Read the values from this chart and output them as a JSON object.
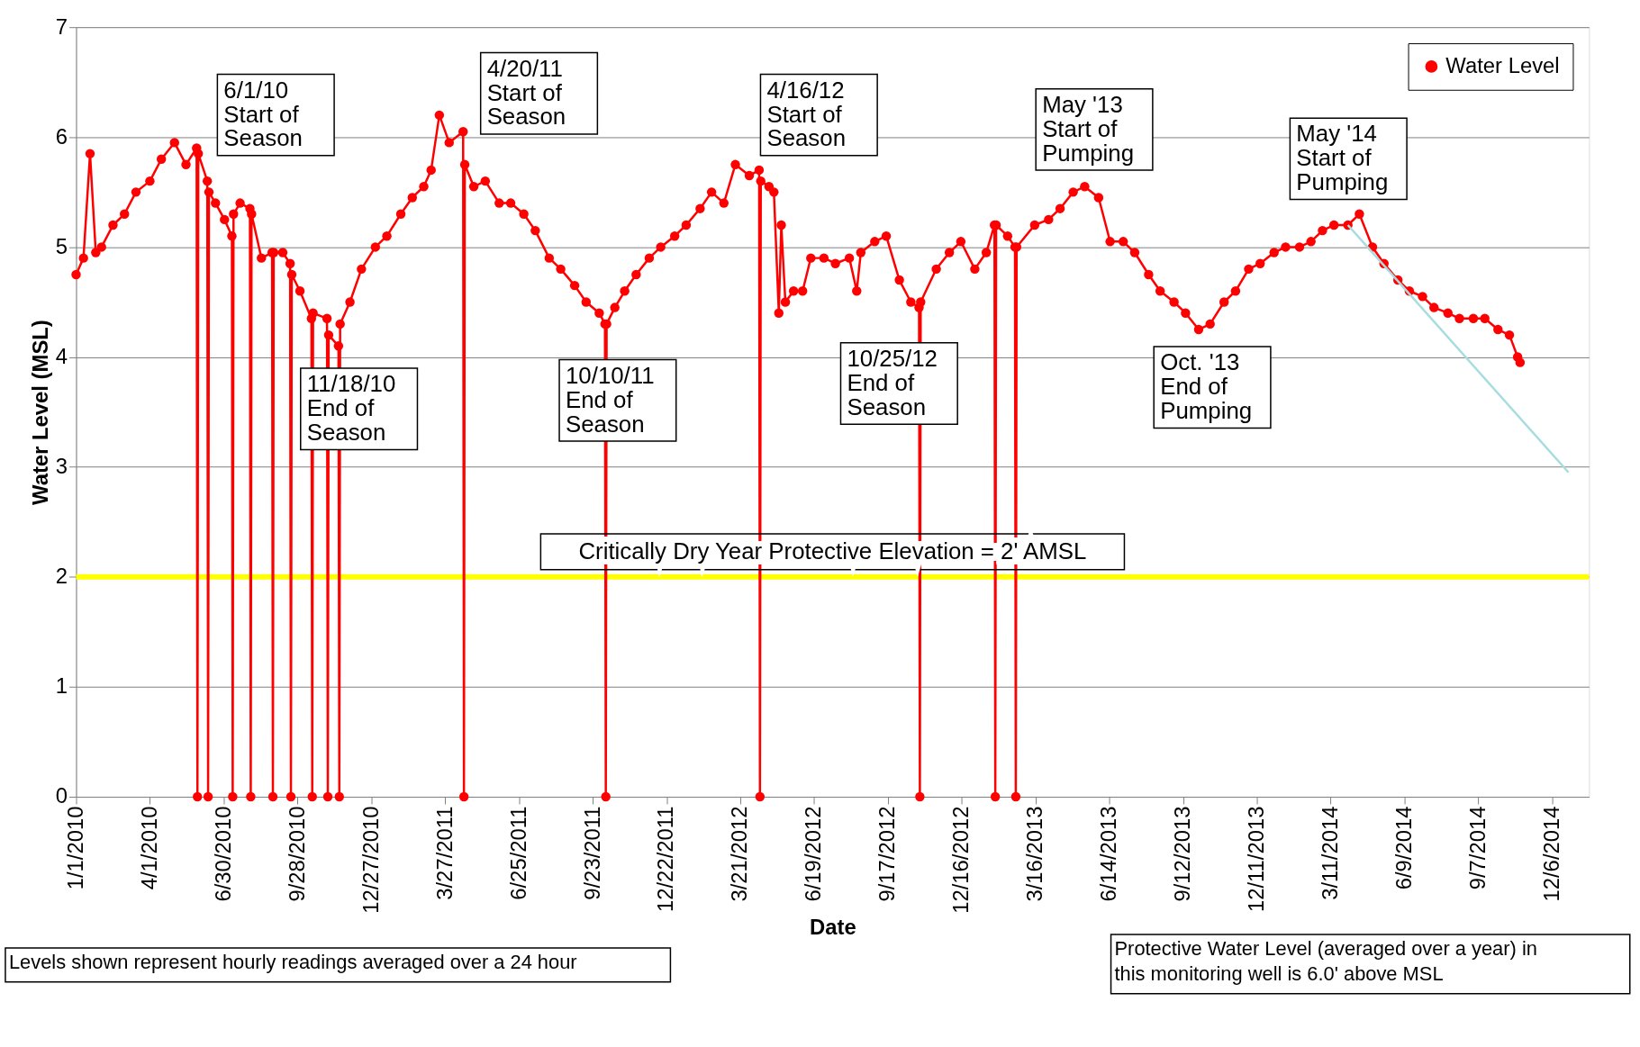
{
  "chart_data": {
    "type": "line",
    "xlabel": "Date",
    "ylabel": "Water Level (MSL)",
    "xlim": [
      "2010-01-01",
      "2015-01-20"
    ],
    "ylim": [
      0,
      7
    ],
    "yticks": [
      0,
      1,
      2,
      3,
      4,
      5,
      6,
      7
    ],
    "xticks": [
      {
        "value": "2010-01-01",
        "label": "1/1/2010"
      },
      {
        "value": "2010-04-01",
        "label": "4/1/2010"
      },
      {
        "value": "2010-06-30",
        "label": "6/30/2010"
      },
      {
        "value": "2010-09-28",
        "label": "9/28/2010"
      },
      {
        "value": "2010-12-27",
        "label": "12/27/2010"
      },
      {
        "value": "2011-03-27",
        "label": "3/27/2011"
      },
      {
        "value": "2011-06-25",
        "label": "6/25/2011"
      },
      {
        "value": "2011-09-23",
        "label": "9/23/2011"
      },
      {
        "value": "2011-12-22",
        "label": "12/22/2011"
      },
      {
        "value": "2012-03-21",
        "label": "3/21/2012"
      },
      {
        "value": "2012-06-19",
        "label": "6/19/2012"
      },
      {
        "value": "2012-09-17",
        "label": "9/17/2012"
      },
      {
        "value": "2012-12-16",
        "label": "12/16/2012"
      },
      {
        "value": "2013-03-16",
        "label": "3/16/2013"
      },
      {
        "value": "2013-06-14",
        "label": "6/14/2013"
      },
      {
        "value": "2013-09-12",
        "label": "9/12/2013"
      },
      {
        "value": "2013-12-11",
        "label": "12/11/2013"
      },
      {
        "value": "2014-03-11",
        "label": "3/11/2014"
      },
      {
        "value": "2014-06-09",
        "label": "6/9/2014"
      },
      {
        "value": "2014-09-07",
        "label": "9/7/2014"
      },
      {
        "value": "2014-12-06",
        "label": "12/6/2014"
      }
    ],
    "grid": "y",
    "legend": "top right",
    "marker": "circle",
    "line_style": "solid",
    "series": [
      {
        "name": "Water Level",
        "color": "#ff0000",
        "x": [
          "2010-01-01",
          "2010-01-10",
          "2010-01-18",
          "2010-01-25",
          "2010-02-01",
          "2010-02-15",
          "2010-03-01",
          "2010-03-15",
          "2010-04-01",
          "2010-04-15",
          "2010-05-01",
          "2010-05-15",
          "2010-05-28",
          "2010-05-29",
          "2010-05-30",
          "2010-06-10",
          "2010-06-11",
          "2010-06-12",
          "2010-06-20",
          "2010-07-01",
          "2010-07-10",
          "2010-07-11",
          "2010-07-12",
          "2010-07-20",
          "2010-08-01",
          "2010-08-02",
          "2010-08-03",
          "2010-08-15",
          "2010-08-28",
          "2010-08-29",
          "2010-08-30",
          "2010-09-10",
          "2010-09-19",
          "2010-09-20",
          "2010-09-21",
          "2010-10-01",
          "2010-10-15",
          "2010-10-16",
          "2010-10-17",
          "2010-11-03",
          "2010-11-04",
          "2010-11-05",
          "2010-11-17",
          "2010-11-18",
          "2010-11-19",
          "2010-12-01",
          "2010-12-15",
          "2011-01-01",
          "2011-01-15",
          "2011-02-01",
          "2011-02-15",
          "2011-03-01",
          "2011-03-10",
          "2011-03-20",
          "2011-04-01",
          "2011-04-18",
          "2011-04-19",
          "2011-04-20",
          "2011-05-01",
          "2011-05-15",
          "2011-06-01",
          "2011-06-15",
          "2011-07-01",
          "2011-07-15",
          "2011-08-01",
          "2011-08-15",
          "2011-09-01",
          "2011-09-15",
          "2011-10-01",
          "2011-10-08",
          "2011-10-09",
          "2011-10-10",
          "2011-10-20",
          "2011-11-01",
          "2011-11-15",
          "2011-12-01",
          "2011-12-15",
          "2012-01-01",
          "2012-01-15",
          "2012-02-01",
          "2012-02-15",
          "2012-03-01",
          "2012-03-15",
          "2012-04-01",
          "2012-04-13",
          "2012-04-14",
          "2012-04-15",
          "2012-04-25",
          "2012-05-01",
          "2012-05-07",
          "2012-05-10",
          "2012-05-15",
          "2012-05-25",
          "2012-06-05",
          "2012-06-15",
          "2012-07-01",
          "2012-07-15",
          "2012-08-01",
          "2012-08-10",
          "2012-08-15",
          "2012-09-01",
          "2012-09-15",
          "2012-10-01",
          "2012-10-15",
          "2012-10-25",
          "2012-10-26",
          "2012-10-27",
          "2012-11-15",
          "2012-12-01",
          "2012-12-15",
          "2013-01-01",
          "2013-01-15",
          "2013-01-25",
          "2013-01-26",
          "2013-01-27",
          "2013-02-10",
          "2013-02-19",
          "2013-02-20",
          "2013-02-21",
          "2013-03-15",
          "2013-04-01",
          "2013-04-15",
          "2013-05-01",
          "2013-05-15",
          "2013-06-01",
          "2013-06-15",
          "2013-07-01",
          "2013-07-15",
          "2013-08-01",
          "2013-08-15",
          "2013-09-01",
          "2013-09-15",
          "2013-10-01",
          "2013-10-15",
          "2013-11-01",
          "2013-11-15",
          "2013-12-01",
          "2013-12-15",
          "2014-01-01",
          "2014-01-15",
          "2014-02-01",
          "2014-02-15",
          "2014-03-01",
          "2014-03-15",
          "2014-04-01",
          "2014-04-15",
          "2014-05-01",
          "2014-05-15",
          "2014-06-01",
          "2014-06-15",
          "2014-07-01",
          "2014-07-15",
          "2014-08-01",
          "2014-08-15",
          "2014-09-01",
          "2014-09-15",
          "2014-10-01",
          "2014-10-15",
          "2014-10-25",
          "2014-10-28"
        ],
        "values": [
          4.75,
          4.9,
          5.85,
          4.95,
          5.0,
          5.2,
          5.3,
          5.5,
          5.6,
          5.8,
          5.95,
          5.75,
          5.9,
          0,
          5.85,
          5.6,
          0,
          5.5,
          5.4,
          5.25,
          5.1,
          0,
          5.3,
          5.4,
          5.35,
          0,
          5.3,
          4.9,
          4.95,
          0,
          4.95,
          4.95,
          4.85,
          0,
          4.75,
          4.6,
          4.35,
          0,
          4.4,
          4.35,
          0,
          4.2,
          4.1,
          0,
          4.3,
          4.5,
          4.8,
          5.0,
          5.1,
          5.3,
          5.45,
          5.55,
          5.7,
          6.2,
          5.95,
          6.05,
          0,
          5.75,
          5.55,
          5.6,
          5.4,
          5.4,
          5.3,
          5.15,
          4.9,
          4.8,
          4.65,
          4.5,
          4.4,
          4.3,
          0,
          4.3,
          4.45,
          4.6,
          4.75,
          4.9,
          5.0,
          5.1,
          5.2,
          5.35,
          5.5,
          5.4,
          5.75,
          5.65,
          5.7,
          0,
          5.6,
          5.55,
          5.5,
          4.4,
          5.2,
          4.5,
          4.6,
          4.6,
          4.9,
          4.9,
          4.85,
          4.9,
          4.6,
          4.95,
          5.05,
          5.1,
          4.7,
          4.5,
          4.45,
          0,
          4.5,
          4.8,
          4.95,
          5.05,
          4.8,
          4.95,
          5.2,
          0,
          5.2,
          5.1,
          5.0,
          0,
          5.0,
          5.2,
          5.25,
          5.35,
          5.5,
          5.55,
          5.45,
          5.05,
          5.05,
          4.95,
          4.75,
          4.6,
          4.5,
          4.4,
          4.25,
          4.3,
          4.5,
          4.6,
          4.8,
          4.85,
          4.95,
          5.0,
          5.0,
          5.05,
          5.15,
          5.2,
          5.2,
          5.3,
          5.0,
          4.85,
          4.7,
          4.6,
          4.55,
          4.45,
          4.4,
          4.35,
          4.35,
          4.35,
          4.25,
          4.2,
          4.0,
          3.95
        ]
      },
      {
        "color": "#a8dde0",
        "marker": "none",
        "x": [
          "2014-04-01",
          "2014-12-26"
        ],
        "values": [
          5.2,
          2.95
        ]
      }
    ],
    "ref_lines": [
      {
        "axis": "y",
        "value": 2,
        "label": "Critically Dry Year Protective Elevation = 2' AMSL",
        "color": "#ffff00"
      }
    ],
    "annotations": [
      "6/1/10\nStart of\nSeason",
      "11/18/10\nEnd of\nSeason",
      "4/20/11\nStart of\nSeason",
      "10/10/11\nEnd of\nSeason",
      "4/16/12\nStart of\nSeason",
      "10/25/12\nEnd of\nSeason",
      "May '13\nStart of\nPumping",
      "Oct. '13\nEnd of\nPumping",
      "May '14\nStart of\nPumping",
      "Levels shown represent hourly readings averaged over a 24 hour",
      "Protective Water Level (averaged over a year) in\nthis monitoring well is 6.0' above MSL"
    ]
  }
}
